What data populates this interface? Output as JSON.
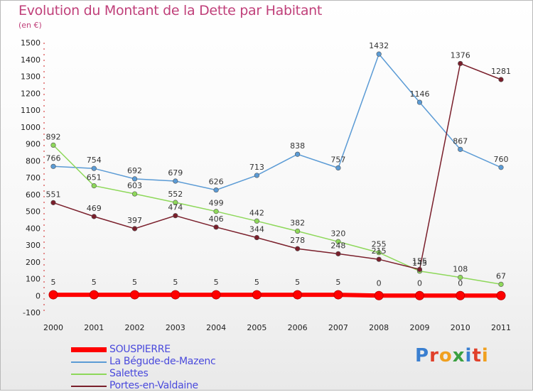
{
  "title": "Evolution du Montant de la Dette par Habitant",
  "subtitle": "(en €)",
  "logo_text": "Proxiti",
  "chart_data": {
    "type": "line",
    "x": [
      "2000",
      "2001",
      "2002",
      "2003",
      "2004",
      "2005",
      "2006",
      "2007",
      "2008",
      "2009",
      "2010",
      "2011"
    ],
    "ylim": [
      -100,
      1500
    ],
    "yticks": [
      -100,
      0,
      100,
      200,
      300,
      400,
      500,
      600,
      700,
      800,
      900,
      1000,
      1100,
      1200,
      1300,
      1400,
      1500
    ],
    "grid": false,
    "legend_position": "bottom-left",
    "series": [
      {
        "name": "SOUSPIERRE",
        "color": "#ff0000",
        "values": [
          5,
          5,
          5,
          5,
          5,
          5,
          5,
          5,
          0,
          0,
          0,
          0
        ],
        "labels": [
          "5",
          "5",
          "5",
          "5",
          "5",
          "5",
          "5",
          "5",
          "0",
          "0",
          "0",
          ""
        ]
      },
      {
        "name": "La Bégude-de-Mazenc",
        "color": "#5b9bd5",
        "values": [
          766,
          754,
          692,
          679,
          626,
          713,
          838,
          757,
          1432,
          1146,
          867,
          760
        ],
        "labels": [
          "766",
          "754",
          "692",
          "679",
          "626",
          "713",
          "838",
          "757",
          "1432",
          "1146",
          "867",
          "760"
        ]
      },
      {
        "name": "Salettes",
        "color": "#8ed85a",
        "values": [
          892,
          651,
          603,
          552,
          499,
          442,
          382,
          320,
          255,
          145,
          108,
          67
        ],
        "labels": [
          "892",
          "651",
          "603",
          "552",
          "499",
          "442",
          "382",
          "320",
          "255",
          "145",
          "108",
          "67"
        ]
      },
      {
        "name": "Portes-en-Valdaine",
        "color": "#7a1f2b",
        "values": [
          551,
          469,
          397,
          474,
          406,
          344,
          278,
          248,
          215,
          155,
          1376,
          1281
        ],
        "labels": [
          "551",
          "469",
          "397",
          "474",
          "406",
          "344",
          "278",
          "248",
          "215",
          "155",
          "1376",
          "1281"
        ]
      }
    ]
  }
}
